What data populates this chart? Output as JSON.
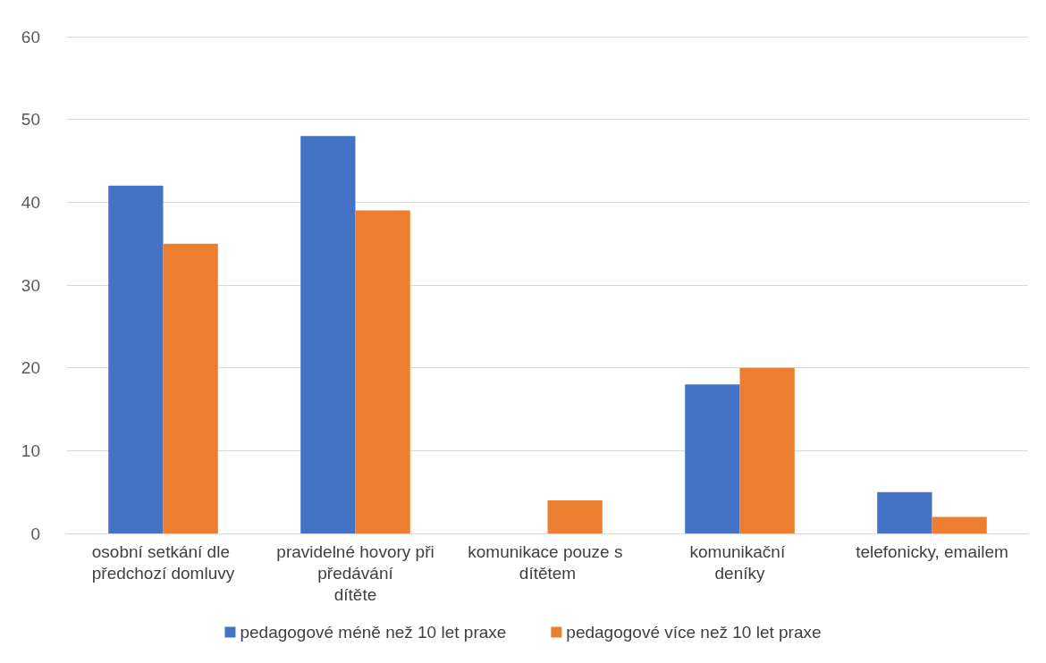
{
  "chart_data": {
    "type": "bar",
    "categories": [
      "osobní setkání dle předchozí domluvy",
      "pravidelné hovory při předávání dítěte",
      "komunikace pouze s dítětem",
      "komunikační deníky",
      "telefonicky, emailem"
    ],
    "series": [
      {
        "name": "pedagogové méně než 10 let praxe",
        "color": "#4472c4",
        "values": [
          42,
          48,
          0,
          18,
          5
        ]
      },
      {
        "name": "pedagogové více než 10 let praxe",
        "color": "#ed7d31",
        "values": [
          35,
          39,
          4,
          20,
          2
        ]
      }
    ],
    "ylim": [
      0,
      60
    ],
    "yticks": [
      0,
      10,
      20,
      30,
      40,
      50,
      60
    ],
    "grid": "y",
    "legend": "bottom"
  }
}
